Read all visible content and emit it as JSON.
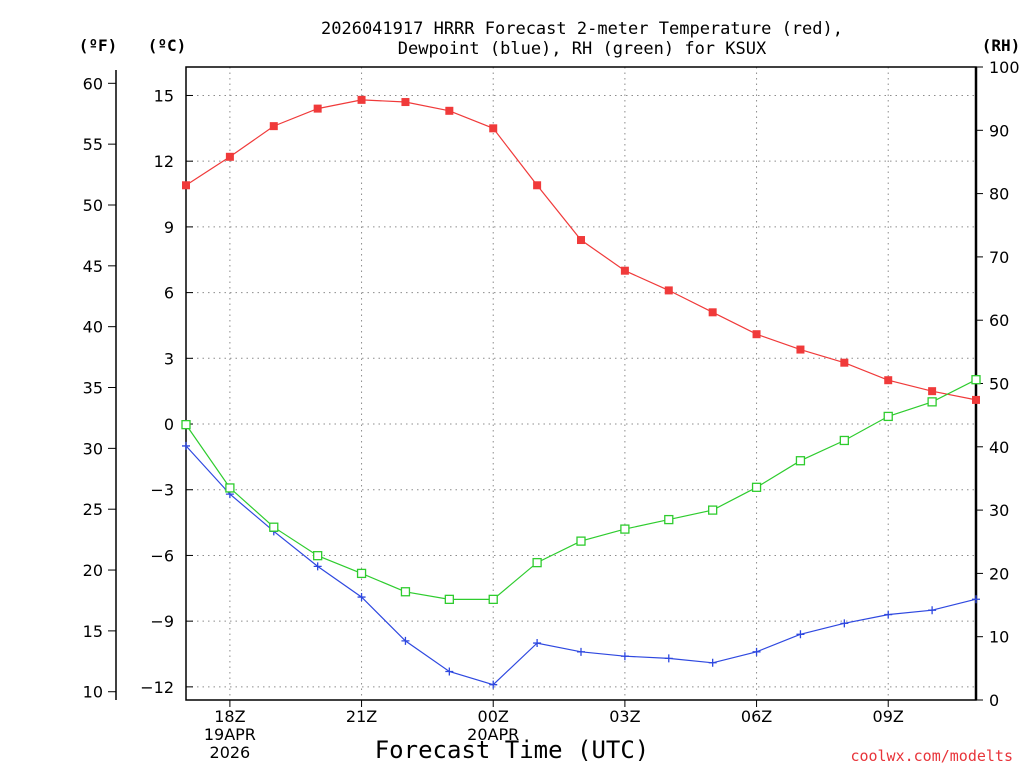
{
  "chart_data": {
    "type": "line",
    "title_line1": "2026041917 HRRR Forecast 2-meter Temperature (red),",
    "title_line2": "Dewpoint (blue), RH (green) for KSUX",
    "xlabel": "Forecast Time (UTC)",
    "credit": "coolwx.com/modelts",
    "left_unit_f": "(ºF)",
    "left_unit_c": "(ºC)",
    "right_unit": "(RH)",
    "hours": [
      0,
      1,
      2,
      3,
      4,
      5,
      6,
      7,
      8,
      9,
      10,
      11,
      12,
      13,
      14,
      15,
      16,
      17,
      18
    ],
    "x_ticks": [
      {
        "h": 1,
        "lines": [
          "18Z",
          "19APR",
          "2026"
        ]
      },
      {
        "h": 4,
        "lines": [
          "21Z"
        ]
      },
      {
        "h": 7,
        "lines": [
          "00Z",
          "20APR"
        ]
      },
      {
        "h": 10,
        "lines": [
          "03Z"
        ]
      },
      {
        "h": 13,
        "lines": [
          "06Z"
        ]
      },
      {
        "h": 16,
        "lines": [
          "09Z"
        ]
      }
    ],
    "celsius_ticks": [
      "15",
      "12",
      "9",
      "6",
      "3",
      "0",
      "−3",
      "−6",
      "−9",
      "−12"
    ],
    "celsius_tick_values": [
      15,
      12,
      9,
      6,
      3,
      0,
      -3,
      -6,
      -9,
      -12
    ],
    "fahrenheit_ticks": [
      "60",
      "55",
      "50",
      "45",
      "40",
      "35",
      "30",
      "25",
      "20",
      "15",
      "10"
    ],
    "fahrenheit_tick_values": [
      60,
      55,
      50,
      45,
      40,
      35,
      30,
      25,
      20,
      15,
      10
    ],
    "rh_ticks": [
      "100",
      "90",
      "80",
      "70",
      "60",
      "50",
      "40",
      "30",
      "20",
      "10",
      "0"
    ],
    "rh_tick_values": [
      100,
      90,
      80,
      70,
      60,
      50,
      40,
      30,
      20,
      10,
      0
    ],
    "ylim_c": [
      -12.6,
      16.3
    ],
    "ylim_rh": [
      0,
      100
    ],
    "series": [
      {
        "name": "Temperature",
        "color": "#f03a3a",
        "unit": "C",
        "values": [
          10.9,
          12.2,
          13.6,
          14.4,
          14.8,
          14.7,
          14.3,
          13.5,
          10.9,
          8.4,
          7.0,
          6.1,
          5.1,
          4.1,
          3.4,
          2.8,
          2.0,
          1.5,
          1.1
        ]
      },
      {
        "name": "Dewpoint",
        "color": "#2e48e0",
        "unit": "C",
        "values": [
          -1.0,
          -3.2,
          -4.9,
          -6.5,
          -7.9,
          -9.9,
          -11.3,
          -11.9,
          -10.0,
          -10.4,
          -10.6,
          -10.7,
          -10.9,
          -10.4,
          -9.6,
          -9.1,
          -8.7,
          -8.5,
          -8.0
        ]
      },
      {
        "name": "RH",
        "color": "#2ecc2e",
        "unit": "RH",
        "values": [
          43.5,
          33.5,
          27.3,
          22.8,
          20.0,
          17.1,
          15.9,
          15.9,
          21.7,
          25.1,
          27.0,
          28.5,
          30.0,
          33.6,
          37.8,
          41.0,
          44.8,
          47.1,
          50.6
        ]
      }
    ]
  }
}
